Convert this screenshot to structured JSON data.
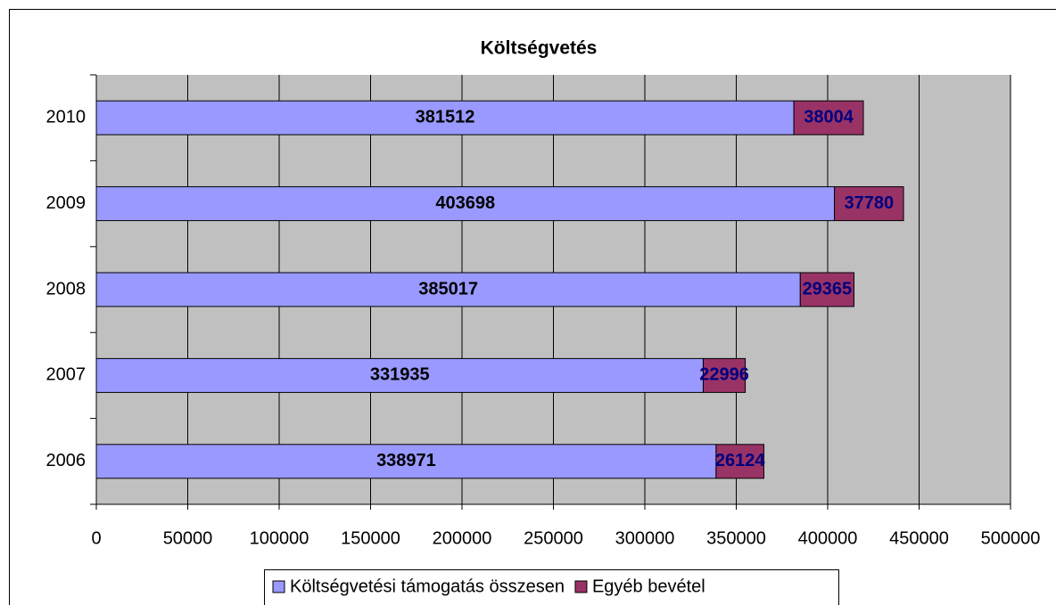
{
  "chart_data": {
    "type": "stacked-barh",
    "title": "Költségvetés",
    "categories": [
      "2006",
      "2007",
      "2008",
      "2009",
      "2010"
    ],
    "series": [
      {
        "name": "Költségvetési támogatás összesen",
        "color": "#9999ff",
        "values": [
          338971,
          331935,
          385017,
          403698,
          381512
        ]
      },
      {
        "name": "Egyéb bevétel",
        "color": "#993366",
        "values": [
          26124,
          22996,
          29365,
          37780,
          38004
        ]
      }
    ],
    "xlim": [
      0,
      500000
    ],
    "xticks": [
      0,
      50000,
      100000,
      150000,
      200000,
      250000,
      300000,
      350000,
      400000,
      450000,
      500000
    ],
    "grid": true,
    "legend": "bottom"
  }
}
